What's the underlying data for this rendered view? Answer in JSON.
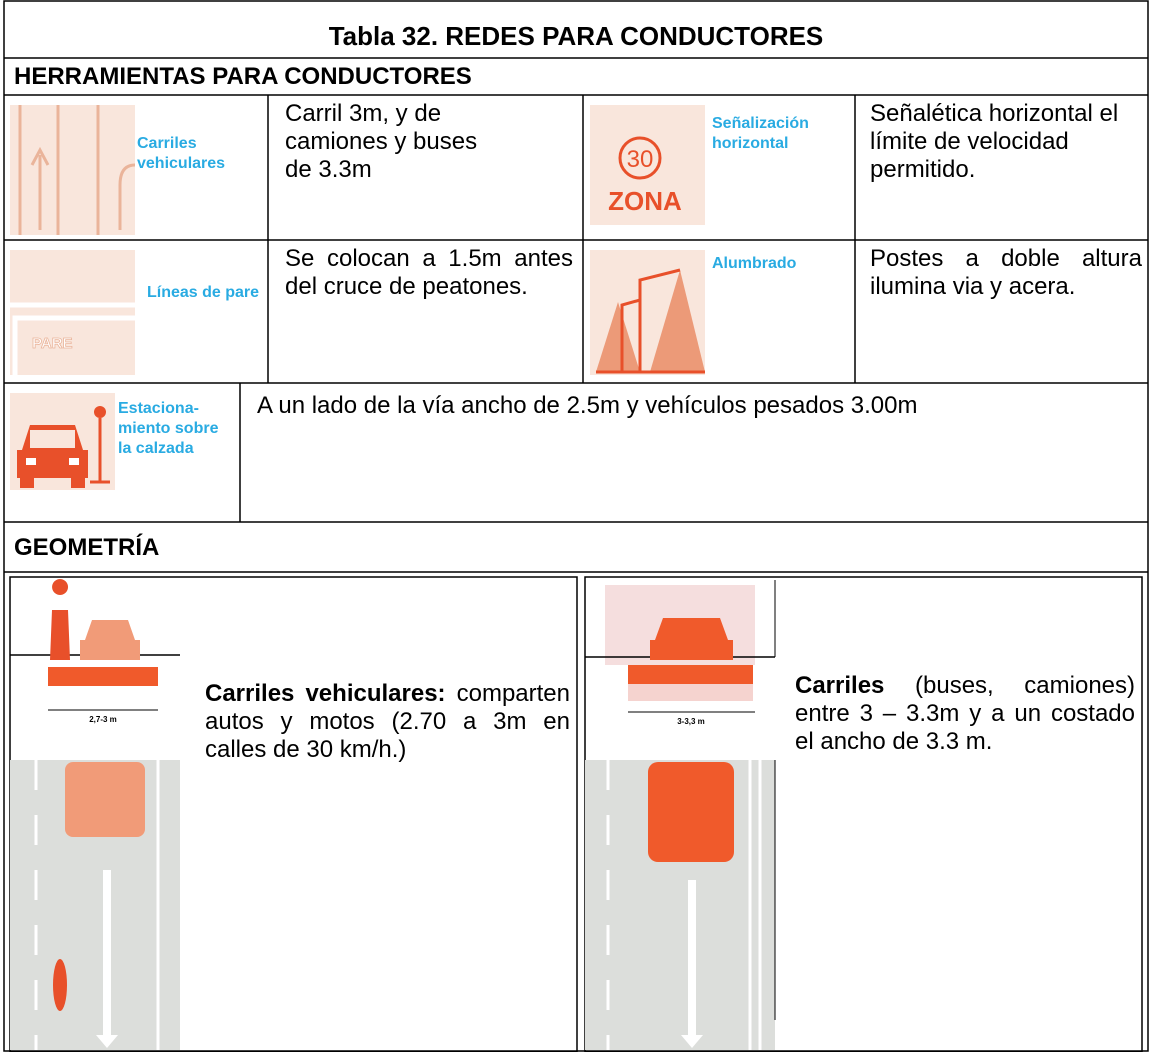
{
  "table": {
    "title": "Tabla 32.  REDES PARA CONDUCTORES",
    "tools_heading": "HERRAMIENTAS PARA CONDUCTORES",
    "tools": [
      {
        "icon_label": "Carriles\nvehiculares",
        "description": "Carril 3m, y de camiones y buses de 3.3m"
      },
      {
        "icon_label": "Señalización\nhorizontal",
        "icon_texts": [
          "30",
          "ZONA"
        ],
        "description": "Señalética horizontal el límite de velocidad permitido."
      },
      {
        "icon_label": "Líneas de pare",
        "icon_texts": [
          "PARE"
        ],
        "description": "Se colocan a 1.5m antes del cruce de peatones."
      },
      {
        "icon_label": "Alumbrado",
        "description": "Postes a doble altura ilumina via y acera."
      },
      {
        "icon_label": "Estaciona-\nmiento sobre\nla calzada",
        "description": "A un lado de la vía ancho de 2.5m y vehículos pesados 3.00m"
      }
    ],
    "geometry_heading": "GEOMETRÍA",
    "geometry": [
      {
        "dimension": "2,7-3 m",
        "title": "Carriles vehiculares:",
        "text": "comparten autos y motos (2.70 a 3m en calles de 30 km/h.)"
      },
      {
        "dimension": "3-3,3 m",
        "title": "Carriles",
        "text": "(buses, camiones) entre 3 – 3.3m y a un costado el ancho de 3.3 m."
      }
    ]
  }
}
